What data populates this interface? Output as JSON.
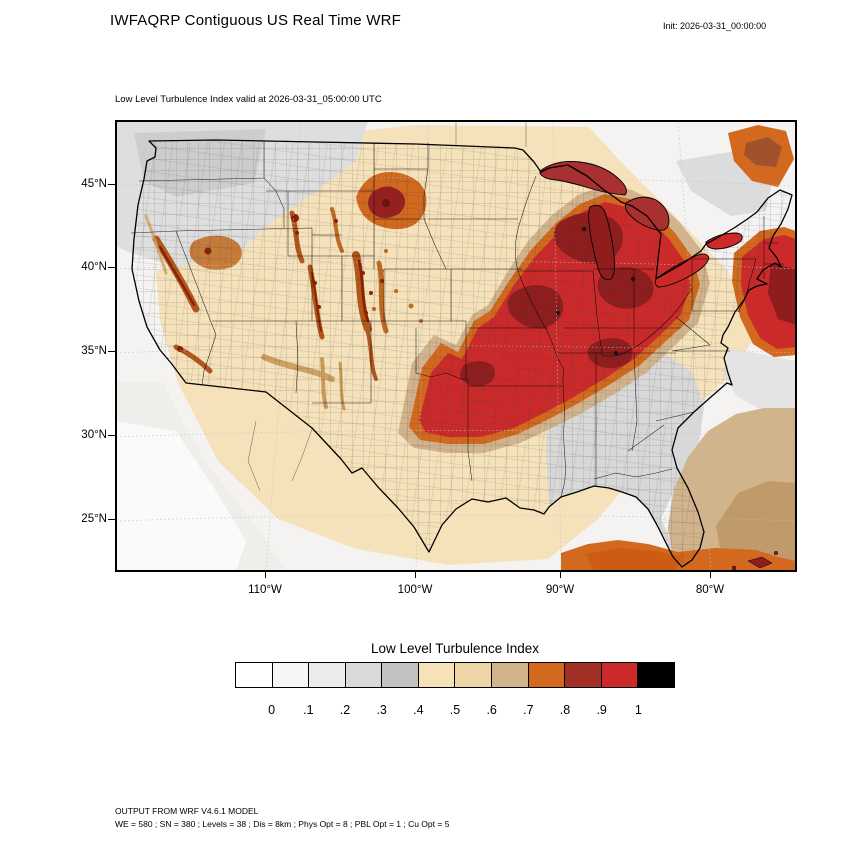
{
  "header": {
    "title": "IWFAQRP Contiguous US Real Time WRF",
    "init_label": "Init: 2026-03-31_00:00:00"
  },
  "map": {
    "subtitle": "Low Level Turbulence Index valid at 2026-03-31_05:00:00 UTC",
    "lat_tick_labels": [
      "45°N",
      "40°N",
      "35°N",
      "30°N",
      "25°N"
    ],
    "lon_tick_labels": [
      "110°W",
      "100°W",
      "90°W",
      "80°W"
    ]
  },
  "colorbar": {
    "title": "Low Level Turbulence Index",
    "tick_labels": [
      "0",
      ".1",
      ".2",
      ".3",
      ".4",
      ".5",
      ".6",
      ".7",
      ".8",
      ".9",
      "1"
    ],
    "colors": [
      "#ffffff",
      "#f6f6f6",
      "#ebebeb",
      "#d9d9d9",
      "#c2c2c2",
      "#f6e2b8",
      "#edd5a5",
      "#d2b48c",
      "#d2691e",
      "#a33026",
      "#cc2a2a",
      "#000000"
    ]
  },
  "footer": {
    "line1": "OUTPUT FROM WRF V4.6.1 MODEL",
    "line2": "WE = 580 ; SN = 380 ; Levels = 38 ; Dis = 8km ; Phys Opt = 8 ; PBL Opt = 1 ; Cu Opt = 5"
  },
  "chart_data": {
    "type": "heatmap",
    "title": "Low Level Turbulence Index",
    "region": "Contiguous US",
    "valid_time": "2026-03-31_05:00:00 UTC",
    "init_time": "2026-03-31_00:00:00",
    "levels": [
      0,
      0.1,
      0.2,
      0.3,
      0.4,
      0.5,
      0.6,
      0.7,
      0.8,
      0.9,
      1
    ],
    "palette": [
      "#ffffff",
      "#f6f6f6",
      "#ebebeb",
      "#d9d9d9",
      "#c2c2c2",
      "#f6e2b8",
      "#edd5a5",
      "#d2b48c",
      "#d2691e",
      "#a33026",
      "#cc2a2a",
      "#000000"
    ],
    "x_ticks": [
      "110°W",
      "100°W",
      "90°W",
      "80°W"
    ],
    "y_ticks": [
      "45°N",
      "40°N",
      "35°N",
      "30°N",
      "25°N"
    ],
    "legend_position": "bottom",
    "notable_maxima": [
      "Central Plains (OK/KS/MO)",
      "Midwest and Ohio Valley",
      "Great Lakes",
      "Western mountain ranges",
      "Atlantic off the Northeast coast"
    ]
  }
}
